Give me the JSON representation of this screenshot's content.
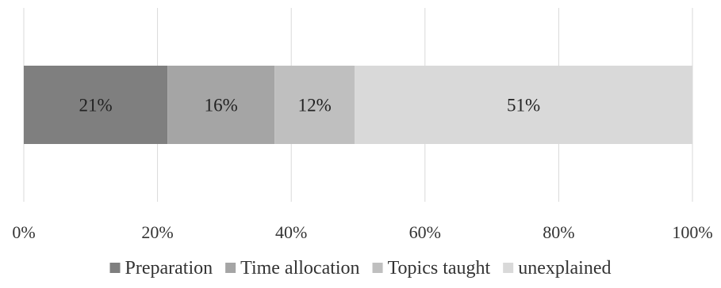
{
  "chart_data": {
    "type": "bar",
    "orientation": "horizontal",
    "stacked": true,
    "title": "",
    "xlabel": "",
    "ylabel": "",
    "xlim": [
      0,
      100
    ],
    "x_ticks": [
      0,
      20,
      40,
      60,
      80,
      100
    ],
    "x_tick_labels": [
      "0%",
      "20%",
      "40%",
      "60%",
      "80%",
      "100%"
    ],
    "grid": "vertical",
    "legend_position": "bottom",
    "series": [
      {
        "name": "Preparation",
        "value": 21.5,
        "label": "21%",
        "color": "#7f7f7f"
      },
      {
        "name": "Time allocation",
        "value": 16,
        "label": "16%",
        "color": "#a5a5a5"
      },
      {
        "name": "Topics taught",
        "value": 12,
        "label": "12%",
        "color": "#bfbfbf"
      },
      {
        "name": "unexplained",
        "value": 50.5,
        "label": "51%",
        "color": "#d9d9d9"
      }
    ]
  }
}
